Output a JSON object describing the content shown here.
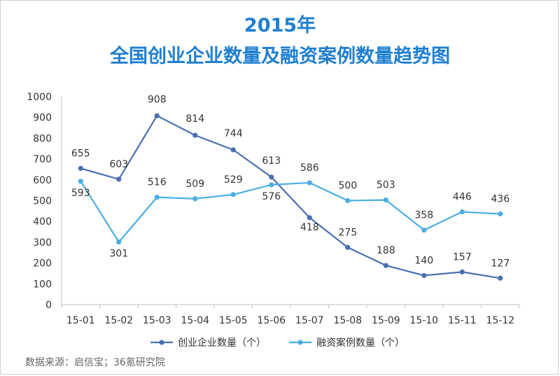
{
  "title_line1": "2015年",
  "title_line2": "全国创业企业数量及融资案例数量趋势图",
  "source": "数据来源：启信宝；36氪研究院",
  "colors": {
    "title": "#1f7fd0",
    "series1": "#4a6fb3",
    "series2": "#4aaee3",
    "axis": "#bfbfbf"
  },
  "chart_data": {
    "type": "line",
    "x": [
      "15-01",
      "15-02",
      "15-03",
      "15-04",
      "15-05",
      "15-06",
      "15-07",
      "15-08",
      "15-09",
      "15-10",
      "15-11",
      "15-12"
    ],
    "series": [
      {
        "name": "创业企业数量（个）",
        "values": [
          655,
          603,
          908,
          814,
          744,
          613,
          418,
          275,
          188,
          140,
          157,
          127
        ]
      },
      {
        "name": "融资案例数量（个）",
        "values": [
          593,
          301,
          516,
          509,
          529,
          576,
          586,
          500,
          503,
          358,
          446,
          436
        ]
      }
    ],
    "ylim": [
      0,
      1000
    ],
    "yticks": [
      0,
      100,
      200,
      300,
      400,
      500,
      600,
      700,
      800,
      900,
      1000
    ],
    "grid": false,
    "legend_position": "bottom"
  }
}
